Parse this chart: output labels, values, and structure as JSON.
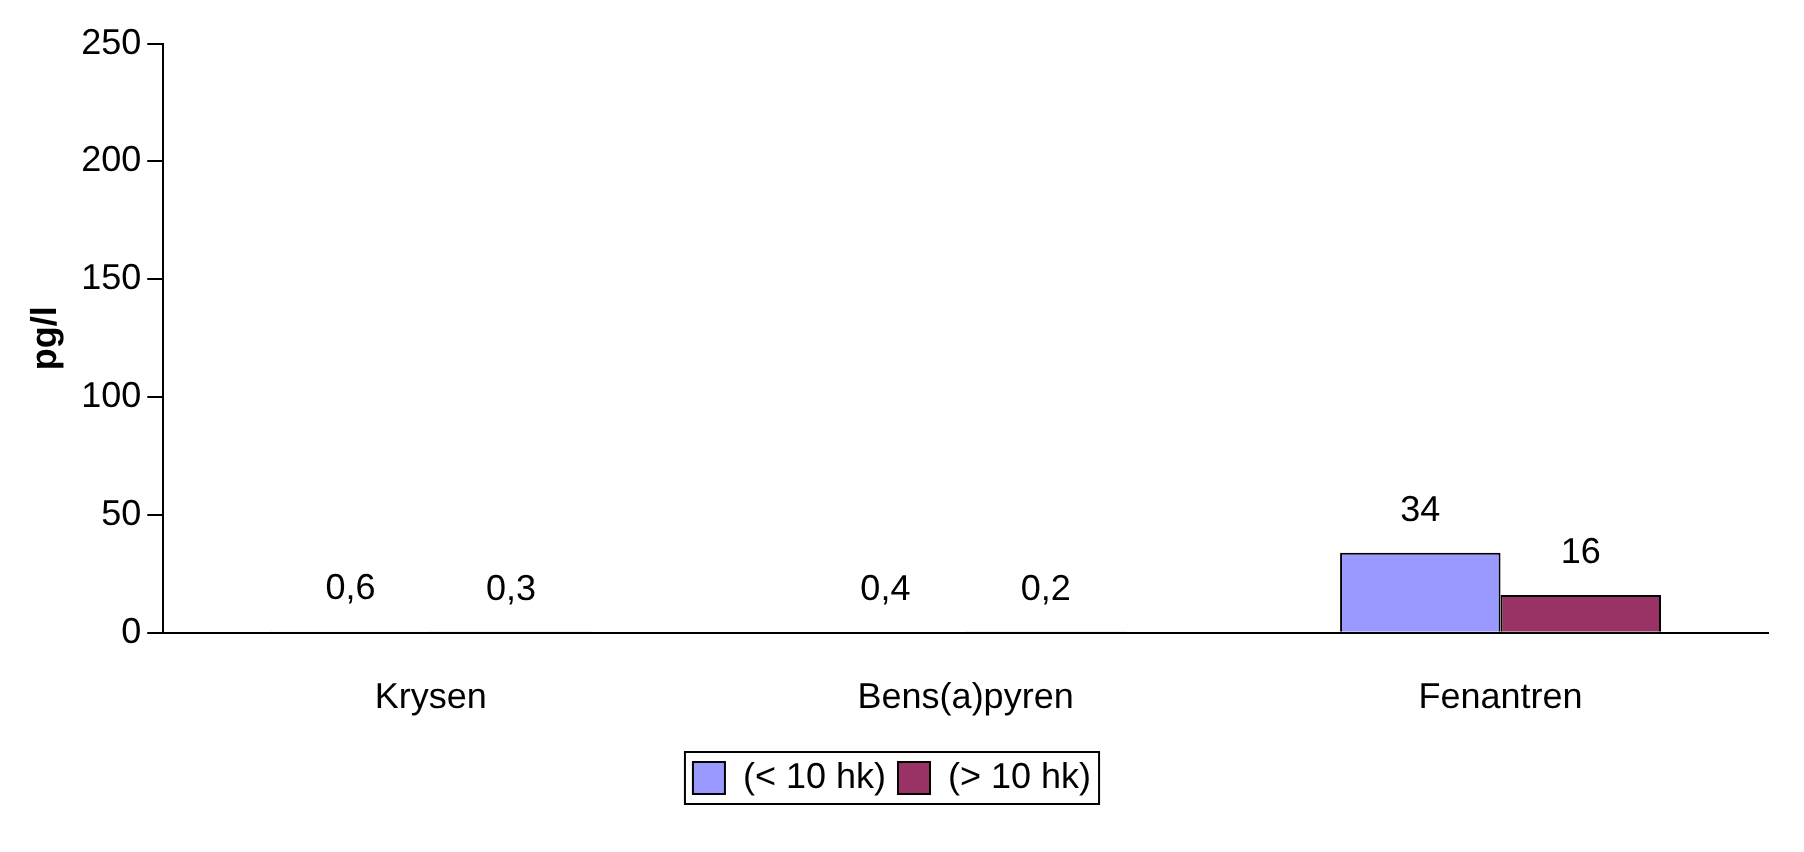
{
  "chart_data": {
    "type": "bar",
    "ylabel": "pg/l",
    "categories": [
      "Krysen",
      "Bens(a)pyren",
      "Fenantren"
    ],
    "series": [
      {
        "name": "(< 10 hk)",
        "color": "#9999ff",
        "values": [
          0.6,
          0.4,
          34
        ],
        "value_labels": [
          "0,6",
          "0,4",
          "34"
        ]
      },
      {
        "name": "(> 10 hk)",
        "color": "#993366",
        "values": [
          0.3,
          0.2,
          16
        ],
        "value_labels": [
          "0,3",
          "0,2",
          "16"
        ]
      }
    ],
    "ylim": [
      0,
      250
    ],
    "yticks": [
      0,
      50,
      100,
      150,
      200,
      250
    ],
    "grid": false,
    "legend": "bottom"
  }
}
